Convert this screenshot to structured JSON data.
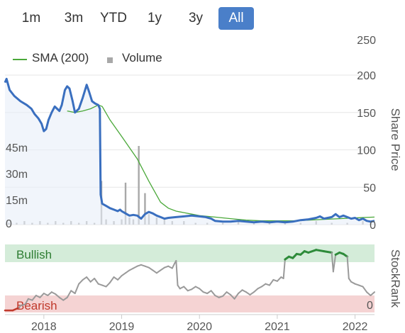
{
  "range_selector": {
    "buttons": [
      {
        "label": "1m",
        "active": false
      },
      {
        "label": "3m",
        "active": false
      },
      {
        "label": "YTD",
        "active": false
      },
      {
        "label": "1y",
        "active": false
      },
      {
        "label": "3y",
        "active": false
      },
      {
        "label": "All",
        "active": true
      }
    ]
  },
  "legend": {
    "sma_label": "SMA (200)",
    "volume_label": "Volume"
  },
  "colors": {
    "price": "#3a6fbf",
    "sma": "#4aa839",
    "volume": "#a8a8a8",
    "bullish_band": "#d4ecd9",
    "bearish_band": "#f5d3d3",
    "stockrank_line": "#9a9a9a",
    "stockrank_bullish": "#2e8b3a",
    "stockrank_bearish": "#c0392b",
    "active_button": "#4a7fc9"
  },
  "chart_data": [
    {
      "type": "line",
      "ylabel": "Share Price",
      "y_ticks": [
        "250",
        "200",
        "150",
        "100",
        "50",
        "0"
      ],
      "ylim": [
        0,
        250
      ],
      "volume_ticks": [
        "45m",
        "30m",
        "15m",
        "0"
      ],
      "volume_ylim": [
        0,
        60
      ],
      "x_ticks": [
        "2018",
        "2019",
        "2020",
        "2021",
        "2022"
      ],
      "xlim": [
        2017.5,
        2022.25
      ],
      "grid": true,
      "legend_position": "top-left",
      "series": [
        {
          "name": "Share Price",
          "points": [
            [
              2017.5,
              190
            ],
            [
              2017.52,
              195
            ],
            [
              2017.56,
              180
            ],
            [
              2017.62,
              172
            ],
            [
              2017.7,
              165
            ],
            [
              2017.78,
              160
            ],
            [
              2017.84,
              155
            ],
            [
              2017.88,
              148
            ],
            [
              2017.93,
              142
            ],
            [
              2017.97,
              135
            ],
            [
              2018.0,
              125
            ],
            [
              2018.03,
              128
            ],
            [
              2018.06,
              140
            ],
            [
              2018.1,
              150
            ],
            [
              2018.14,
              158
            ],
            [
              2018.17,
              155
            ],
            [
              2018.2,
              152
            ],
            [
              2018.23,
              160
            ],
            [
              2018.27,
              180
            ],
            [
              2018.3,
              185
            ],
            [
              2018.33,
              182
            ],
            [
              2018.37,
              165
            ],
            [
              2018.4,
              150
            ],
            [
              2018.45,
              155
            ],
            [
              2018.5,
              170
            ],
            [
              2018.55,
              187
            ],
            [
              2018.58,
              178
            ],
            [
              2018.62,
              165
            ],
            [
              2018.66,
              162
            ],
            [
              2018.7,
              160
            ],
            [
              2018.72,
              155
            ],
            [
              2018.73,
              40
            ],
            [
              2018.75,
              28
            ],
            [
              2018.8,
              25
            ],
            [
              2018.85,
              22
            ],
            [
              2018.9,
              20
            ],
            [
              2018.95,
              18
            ],
            [
              2018.98,
              20
            ],
            [
              2019.0,
              18
            ],
            [
              2019.05,
              15
            ],
            [
              2019.1,
              12
            ],
            [
              2019.15,
              13
            ],
            [
              2019.2,
              12
            ],
            [
              2019.25,
              8
            ],
            [
              2019.3,
              14
            ],
            [
              2019.35,
              17
            ],
            [
              2019.4,
              15
            ],
            [
              2019.45,
              12
            ],
            [
              2019.5,
              10
            ],
            [
              2019.55,
              8
            ],
            [
              2019.6,
              9
            ],
            [
              2019.7,
              10
            ],
            [
              2019.8,
              11
            ],
            [
              2019.9,
              12
            ],
            [
              2020.0,
              11
            ],
            [
              2020.08,
              10
            ],
            [
              2020.15,
              8
            ],
            [
              2020.2,
              5
            ],
            [
              2020.3,
              4
            ],
            [
              2020.4,
              4
            ],
            [
              2020.5,
              5
            ],
            [
              2020.6,
              4
            ],
            [
              2020.7,
              3
            ],
            [
              2020.8,
              4
            ],
            [
              2020.9,
              3
            ],
            [
              2021.0,
              4
            ],
            [
              2021.1,
              3
            ],
            [
              2021.2,
              4
            ],
            [
              2021.3,
              6
            ],
            [
              2021.4,
              7
            ],
            [
              2021.5,
              9
            ],
            [
              2021.55,
              11
            ],
            [
              2021.6,
              8
            ],
            [
              2021.7,
              10
            ],
            [
              2021.75,
              14
            ],
            [
              2021.8,
              10
            ],
            [
              2021.85,
              12
            ],
            [
              2021.9,
              10
            ],
            [
              2021.95,
              8
            ],
            [
              2022.0,
              9
            ],
            [
              2022.05,
              6
            ],
            [
              2022.1,
              8
            ],
            [
              2022.15,
              5
            ],
            [
              2022.2,
              4
            ],
            [
              2022.25,
              5
            ]
          ]
        },
        {
          "name": "SMA (200)",
          "points": [
            [
              2018.3,
              152
            ],
            [
              2018.4,
              150
            ],
            [
              2018.5,
              152
            ],
            [
              2018.6,
              155
            ],
            [
              2018.7,
              160
            ],
            [
              2018.75,
              158
            ],
            [
              2018.85,
              140
            ],
            [
              2019.0,
              118
            ],
            [
              2019.2,
              88
            ],
            [
              2019.35,
              58
            ],
            [
              2019.5,
              30
            ],
            [
              2019.6,
              22
            ],
            [
              2019.7,
              18
            ],
            [
              2019.8,
              16
            ],
            [
              2019.9,
              14
            ],
            [
              2020.0,
              12
            ],
            [
              2020.2,
              10
            ],
            [
              2020.4,
              8
            ],
            [
              2020.6,
              6
            ],
            [
              2020.8,
              5
            ],
            [
              2021.0,
              5
            ],
            [
              2021.2,
              5
            ],
            [
              2021.4,
              6
            ],
            [
              2021.6,
              7
            ],
            [
              2021.8,
              8
            ],
            [
              2022.0,
              9
            ],
            [
              2022.25,
              10
            ]
          ]
        },
        {
          "name": "Volume",
          "points": [
            [
              2017.55,
              1
            ],
            [
              2017.65,
              1
            ],
            [
              2017.75,
              2
            ],
            [
              2017.85,
              1
            ],
            [
              2017.95,
              2
            ],
            [
              2018.05,
              1
            ],
            [
              2018.15,
              2
            ],
            [
              2018.25,
              1
            ],
            [
              2018.35,
              2
            ],
            [
              2018.45,
              1
            ],
            [
              2018.55,
              2
            ],
            [
              2018.65,
              1
            ],
            [
              2018.74,
              25
            ],
            [
              2018.8,
              3
            ],
            [
              2018.9,
              2
            ],
            [
              2019.0,
              3
            ],
            [
              2019.05,
              24
            ],
            [
              2019.1,
              4
            ],
            [
              2019.15,
              3
            ],
            [
              2019.22,
              45
            ],
            [
              2019.3,
              18
            ],
            [
              2019.35,
              6
            ],
            [
              2019.45,
              4
            ],
            [
              2019.55,
              3
            ],
            [
              2019.65,
              2
            ],
            [
              2019.8,
              2
            ],
            [
              2019.95,
              1
            ],
            [
              2020.1,
              1
            ],
            [
              2020.3,
              1
            ],
            [
              2020.5,
              2
            ],
            [
              2020.7,
              1
            ],
            [
              2020.9,
              1
            ],
            [
              2021.1,
              2
            ],
            [
              2021.3,
              1
            ],
            [
              2021.5,
              2
            ],
            [
              2021.7,
              1
            ],
            [
              2021.9,
              1
            ],
            [
              2022.1,
              2
            ],
            [
              2022.2,
              1
            ]
          ]
        }
      ]
    },
    {
      "type": "line",
      "ylabel": "StockRank",
      "band_labels": {
        "bullish": "Bullish",
        "bearish": "Bearish"
      },
      "y_ticks": [
        "0"
      ],
      "ylim": [
        0,
        100
      ],
      "x_ticks": [
        "2018",
        "2019",
        "2020",
        "2021",
        "2022"
      ],
      "xlim": [
        2017.5,
        2022.25
      ],
      "series": [
        {
          "name": "StockRank",
          "points": [
            [
              2017.5,
              3
            ],
            [
              2017.6,
              3
            ],
            [
              2017.68,
              7
            ],
            [
              2017.7,
              10
            ],
            [
              2017.76,
              12
            ],
            [
              2017.8,
              20
            ],
            [
              2017.85,
              18
            ],
            [
              2017.9,
              25
            ],
            [
              2017.95,
              22
            ],
            [
              2018.0,
              28
            ],
            [
              2018.05,
              25
            ],
            [
              2018.1,
              30
            ],
            [
              2018.15,
              27
            ],
            [
              2018.2,
              22
            ],
            [
              2018.25,
              18
            ],
            [
              2018.3,
              22
            ],
            [
              2018.35,
              32
            ],
            [
              2018.4,
              28
            ],
            [
              2018.45,
              42
            ],
            [
              2018.5,
              48
            ],
            [
              2018.55,
              52
            ],
            [
              2018.6,
              45
            ],
            [
              2018.65,
              50
            ],
            [
              2018.7,
              42
            ],
            [
              2018.75,
              40
            ],
            [
              2018.8,
              38
            ],
            [
              2018.85,
              44
            ],
            [
              2018.9,
              52
            ],
            [
              2018.95,
              48
            ],
            [
              2019.0,
              54
            ],
            [
              2019.05,
              58
            ],
            [
              2019.1,
              62
            ],
            [
              2019.15,
              65
            ],
            [
              2019.2,
              68
            ],
            [
              2019.25,
              70
            ],
            [
              2019.3,
              68
            ],
            [
              2019.35,
              66
            ],
            [
              2019.4,
              62
            ],
            [
              2019.45,
              58
            ],
            [
              2019.5,
              62
            ],
            [
              2019.55,
              66
            ],
            [
              2019.6,
              68
            ],
            [
              2019.65,
              65
            ],
            [
              2019.68,
              72
            ],
            [
              2019.7,
              76
            ],
            [
              2019.72,
              40
            ],
            [
              2019.75,
              35
            ],
            [
              2019.8,
              38
            ],
            [
              2019.85,
              32
            ],
            [
              2019.9,
              34
            ],
            [
              2019.95,
              38
            ],
            [
              2020.0,
              35
            ],
            [
              2020.05,
              30
            ],
            [
              2020.1,
              28
            ],
            [
              2020.15,
              32
            ],
            [
              2020.2,
              25
            ],
            [
              2020.25,
              22
            ],
            [
              2020.3,
              24
            ],
            [
              2020.35,
              30
            ],
            [
              2020.4,
              26
            ],
            [
              2020.45,
              20
            ],
            [
              2020.5,
              28
            ],
            [
              2020.55,
              33
            ],
            [
              2020.6,
              30
            ],
            [
              2020.65,
              26
            ],
            [
              2020.7,
              30
            ],
            [
              2020.75,
              35
            ],
            [
              2020.8,
              38
            ],
            [
              2020.85,
              42
            ],
            [
              2020.9,
              40
            ],
            [
              2020.95,
              48
            ],
            [
              2021.0,
              46
            ],
            [
              2021.05,
              52
            ],
            [
              2021.08,
              50
            ],
            [
              2021.1,
              78
            ],
            [
              2021.15,
              82
            ],
            [
              2021.2,
              80
            ],
            [
              2021.25,
              86
            ],
            [
              2021.3,
              85
            ],
            [
              2021.35,
              90
            ],
            [
              2021.4,
              88
            ],
            [
              2021.5,
              92
            ],
            [
              2021.6,
              90
            ],
            [
              2021.7,
              88
            ],
            [
              2021.72,
              60
            ],
            [
              2021.75,
              85
            ],
            [
              2021.8,
              88
            ],
            [
              2021.85,
              86
            ],
            [
              2021.9,
              82
            ],
            [
              2021.92,
              50
            ],
            [
              2021.95,
              45
            ],
            [
              2022.0,
              42
            ],
            [
              2022.05,
              40
            ],
            [
              2022.1,
              38
            ],
            [
              2022.15,
              30
            ],
            [
              2022.2,
              25
            ],
            [
              2022.25,
              30
            ]
          ]
        }
      ]
    }
  ]
}
